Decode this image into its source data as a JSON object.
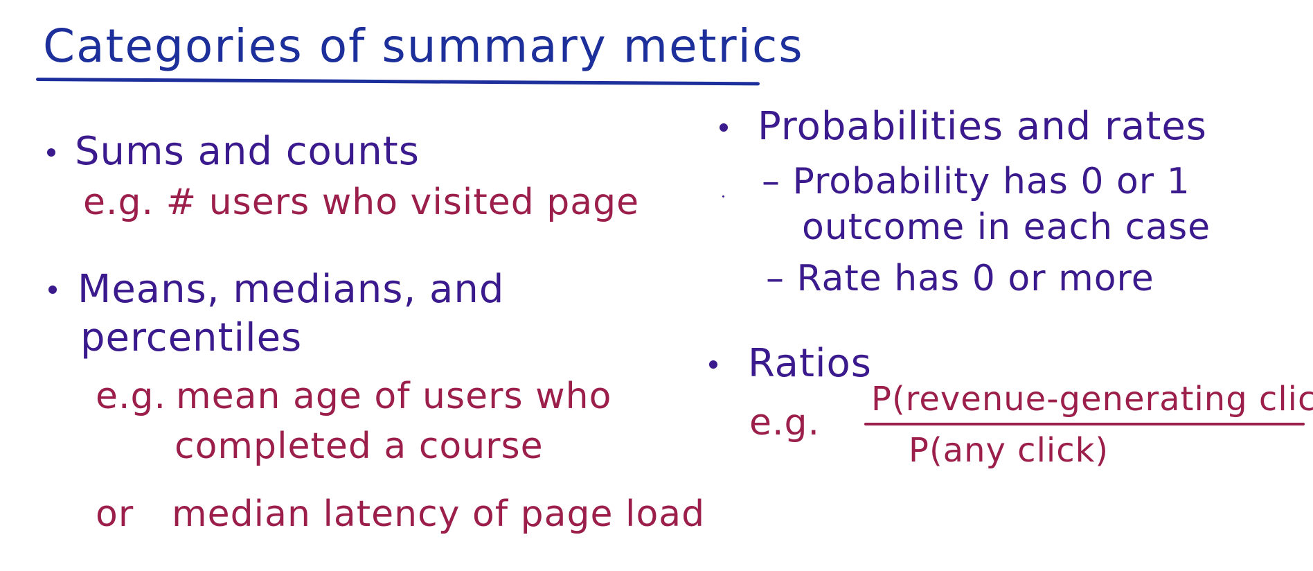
{
  "title": "Categories of summary metrics",
  "colors": {
    "title": "#1c2f9a",
    "heading": "#3a1a8c",
    "example": "#9b1f4a",
    "background": "#ffffff"
  },
  "left": {
    "sums": {
      "heading": "Sums and counts",
      "example": "e.g. # users who visited page"
    },
    "means": {
      "heading_line1": "Means, medians, and",
      "heading_line2": "percentiles",
      "example_prefix": "e.g.",
      "example_line1": "mean age of users who",
      "example_line2": "completed a course",
      "alt_prefix": "or",
      "alt_example": "median latency of page load"
    }
  },
  "right": {
    "probabilities": {
      "heading": "Probabilities and rates",
      "sub1_line1": "– Probability has 0 or 1",
      "sub1_line2": "outcome in each case",
      "sub2": "– Rate has 0 or more"
    },
    "ratios": {
      "heading": "Ratios",
      "example_prefix": "e.g.",
      "numerator": "P(revenue-generating click)",
      "denominator": "P(any click)"
    }
  }
}
